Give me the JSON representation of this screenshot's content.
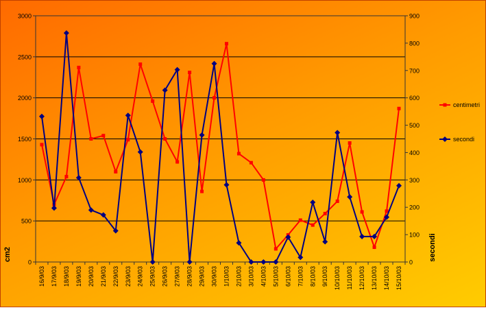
{
  "chart_data": {
    "type": "line",
    "categories": [
      "16/9/03",
      "17/9/03",
      "18/9/03",
      "19/9/03",
      "20/9/03",
      "21/9/03",
      "22/9/03",
      "23/9/03",
      "24/9/03",
      "25/9/03",
      "26/9/03",
      "27/9/03",
      "28/9/03",
      "29/9/03",
      "30/9/03",
      "1/10/03",
      "2/10/03",
      "3/10/03",
      "4/10/03",
      "5/10/03",
      "6/10/03",
      "7/10/03",
      "8/10/03",
      "9/10/03",
      "10/10/03",
      "11/10/03",
      "12/10/03",
      "13/10/03",
      "14/10/03",
      "15/10/03"
    ],
    "ylabel": "cm2",
    "y2label": "secondi",
    "ylim": [
      0,
      3000
    ],
    "y2lim": [
      0,
      900
    ],
    "yticks": [
      "0",
      "500",
      "1000",
      "1500",
      "2000",
      "2500",
      "3000"
    ],
    "y2ticks": [
      "0",
      "100",
      "200",
      "300",
      "400",
      "500",
      "600",
      "700",
      "800",
      "900"
    ],
    "grid": true,
    "legend_position": "right",
    "series": [
      {
        "name": "centimetri",
        "axis": "left",
        "color": "#ff0000",
        "marker": "square",
        "values": [
          1430,
          700,
          1040,
          2370,
          1500,
          1540,
          1100,
          1490,
          2410,
          1960,
          1500,
          1220,
          2310,
          860,
          2000,
          2660,
          1320,
          1210,
          1000,
          160,
          330,
          510,
          450,
          590,
          740,
          1450,
          610,
          180,
          620,
          1870
        ]
      },
      {
        "name": "secondi",
        "axis": "right",
        "color": "#000080",
        "marker": "diamond",
        "values": [
          532,
          197,
          837,
          308,
          190,
          172,
          114,
          536,
          402,
          0,
          628,
          703,
          0,
          464,
          725,
          282,
          70,
          0,
          0,
          0,
          91,
          17,
          218,
          74,
          473,
          238,
          93,
          93,
          164,
          279
        ]
      }
    ]
  }
}
